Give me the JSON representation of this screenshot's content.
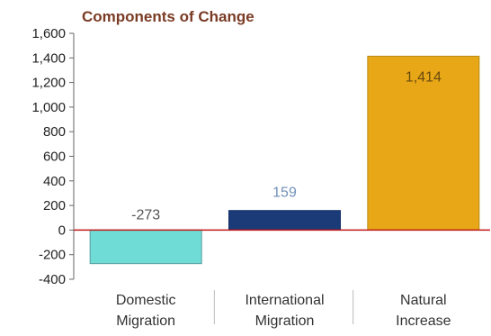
{
  "chart_data": {
    "type": "bar",
    "title": "Components of Change",
    "xlabel": "",
    "ylabel": "",
    "ylim": [
      -400,
      1600
    ],
    "yticks": [
      1600,
      1400,
      1200,
      1000,
      800,
      600,
      400,
      200,
      0,
      -200,
      -400
    ],
    "ytick_labels": [
      "1,600",
      "1,400",
      "1,200",
      "1,000",
      "800",
      "600",
      "400",
      "200",
      "0",
      "-200",
      "-400"
    ],
    "grid": false,
    "categories": [
      {
        "line1": "Domestic",
        "line2": "Migration"
      },
      {
        "line1": "International",
        "line2": "Migration"
      },
      {
        "line1": "Natural",
        "line2": "Increase"
      }
    ],
    "values": [
      -273,
      159,
      1414
    ],
    "value_labels": [
      "-273",
      "159",
      "1,414"
    ],
    "colors": {
      "title": "#7a3b24",
      "bars": [
        "#6fdcd5",
        "#1a3a78",
        "#e8a717"
      ],
      "bar_edges": [
        "#5a9ea0",
        "#16306a",
        "#b88a14"
      ],
      "data_labels": [
        "#555555",
        "#7090b8",
        "#6a4a10"
      ],
      "zero_line": "#c01818",
      "axis": "#666666"
    }
  }
}
